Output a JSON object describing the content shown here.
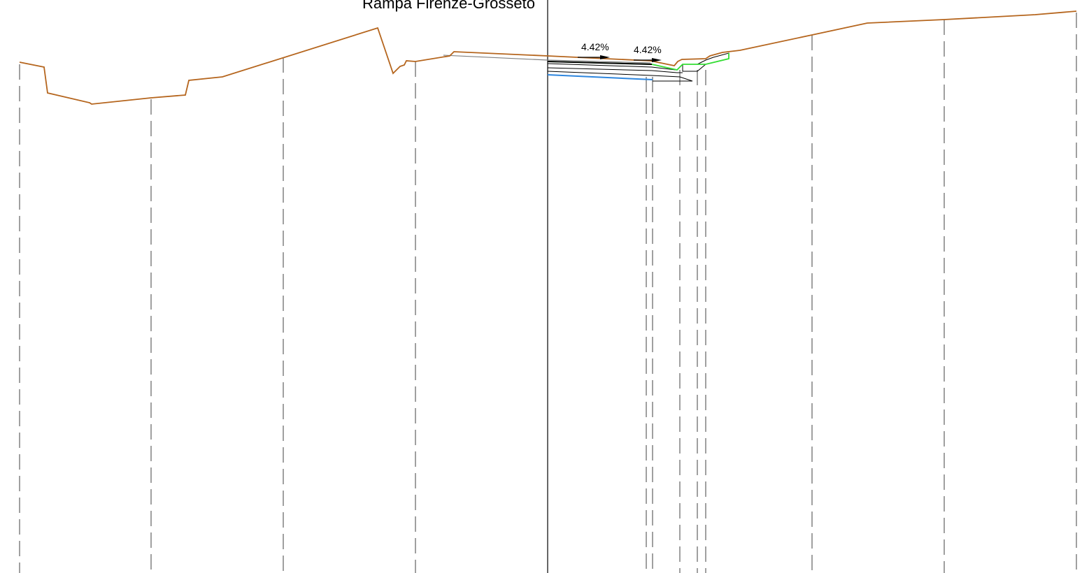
{
  "section": {
    "title": "Rampa Firenze-Grosseto"
  },
  "slopes": {
    "left": "4.42%",
    "right": "4.42%"
  },
  "colors": {
    "ground": "#b5651d",
    "axis": "#000000",
    "reference_lines": "#808080",
    "green_layer": "#33dd33",
    "blue_layer": "#2e86de",
    "pavement": "#000000"
  }
}
